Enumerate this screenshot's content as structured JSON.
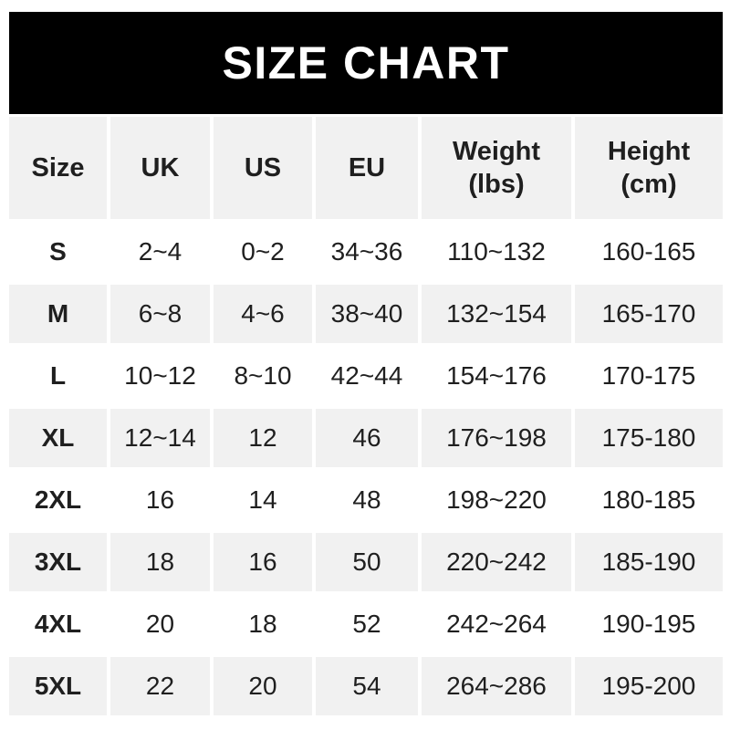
{
  "banner": {
    "title": "SIZE CHART"
  },
  "colors": {
    "banner_bg": "#000000",
    "banner_text": "#ffffff",
    "stripe_bg": "#f1f1f1",
    "plain_bg": "#ffffff",
    "text": "#1f1f1f"
  },
  "chart_data": {
    "type": "table",
    "title": "SIZE CHART",
    "columns": [
      "Size",
      "UK",
      "US",
      "EU",
      "Weight\n(lbs)",
      "Height\n(cm)"
    ],
    "rows": [
      [
        "S",
        "2~4",
        "0~2",
        "34~36",
        "110~132",
        "160-165"
      ],
      [
        "M",
        "6~8",
        "4~6",
        "38~40",
        "132~154",
        "165-170"
      ],
      [
        "L",
        "10~12",
        "8~10",
        "42~44",
        "154~176",
        "170-175"
      ],
      [
        "XL",
        "12~14",
        "12",
        "46",
        "176~198",
        "175-180"
      ],
      [
        "2XL",
        "16",
        "14",
        "48",
        "198~220",
        "180-185"
      ],
      [
        "3XL",
        "18",
        "16",
        "50",
        "220~242",
        "185-190"
      ],
      [
        "4XL",
        "20",
        "18",
        "52",
        "242~264",
        "190-195"
      ],
      [
        "5XL",
        "22",
        "20",
        "54",
        "264~286",
        "195-200"
      ]
    ],
    "layout": {
      "grid": "off",
      "striped_rows": true,
      "header_position": "top"
    }
  }
}
